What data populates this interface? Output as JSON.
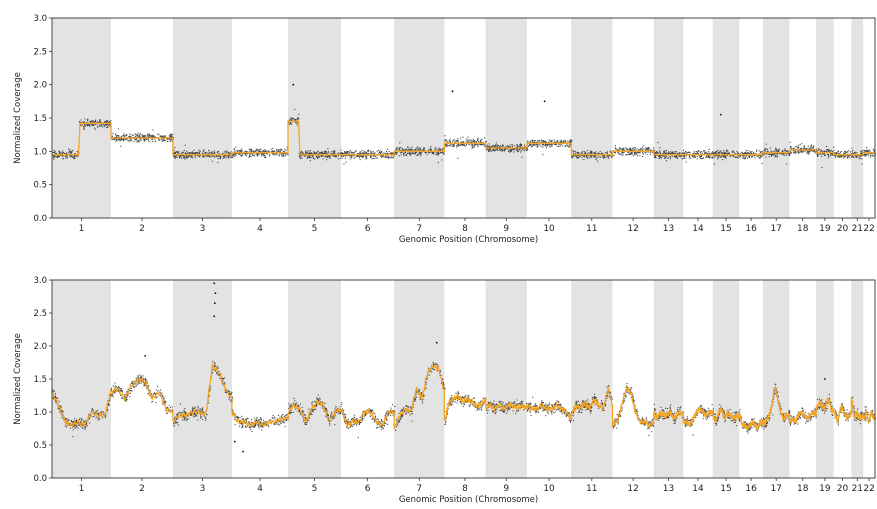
{
  "chart_data": [
    {
      "type": "scatter",
      "xlabel": "Genomic Position (Chromosome)",
      "ylabel": "Normalized Coverage",
      "ylim": [
        0.0,
        3.0
      ],
      "yticks": [
        "0.0",
        "0.5",
        "1.0",
        "1.5",
        "2.0",
        "2.5",
        "3.0"
      ],
      "xticks": [
        "1",
        "2",
        "3",
        "4",
        "5",
        "6",
        "7",
        "8",
        "9",
        "10",
        "11",
        "12",
        "13",
        "14",
        "15",
        "16",
        "17",
        "18",
        "19",
        "20",
        "21",
        "22"
      ],
      "chrom_spans": [
        1.0,
        1.05,
        1.0,
        0.95,
        0.9,
        0.9,
        0.85,
        0.7,
        0.7,
        0.75,
        0.7,
        0.7,
        0.5,
        0.5,
        0.45,
        0.4,
        0.45,
        0.45,
        0.3,
        0.3,
        0.2,
        0.2
      ],
      "grid": false,
      "point_color": "#111111",
      "segment_color": "#f5a623",
      "band_color": "#e3e3e3",
      "segments": [
        {
          "chrom": "1",
          "start": 0.0,
          "end": 0.45,
          "value": 0.95
        },
        {
          "chrom": "1",
          "start": 0.45,
          "end": 1.0,
          "value": 1.42
        },
        {
          "chrom": "2",
          "start": 0.0,
          "end": 1.0,
          "value": 1.2
        },
        {
          "chrom": "3",
          "start": 0.0,
          "end": 1.0,
          "value": 0.95
        },
        {
          "chrom": "4",
          "start": 0.0,
          "end": 1.0,
          "value": 0.98
        },
        {
          "chrom": "5",
          "start": 0.0,
          "end": 0.2,
          "value": 1.45
        },
        {
          "chrom": "5",
          "start": 0.2,
          "end": 1.0,
          "value": 0.95
        },
        {
          "chrom": "6",
          "start": 0.0,
          "end": 1.0,
          "value": 0.95
        },
        {
          "chrom": "7",
          "start": 0.0,
          "end": 1.0,
          "value": 1.0
        },
        {
          "chrom": "8",
          "start": 0.0,
          "end": 1.0,
          "value": 1.12
        },
        {
          "chrom": "9",
          "start": 0.0,
          "end": 1.0,
          "value": 1.05
        },
        {
          "chrom": "10",
          "start": 0.0,
          "end": 1.0,
          "value": 1.12
        },
        {
          "chrom": "11",
          "start": 0.0,
          "end": 1.0,
          "value": 0.95
        },
        {
          "chrom": "12",
          "start": 0.0,
          "end": 1.0,
          "value": 1.0
        },
        {
          "chrom": "13",
          "start": 0.0,
          "end": 1.0,
          "value": 0.95
        },
        {
          "chrom": "14",
          "start": 0.0,
          "end": 1.0,
          "value": 0.95
        },
        {
          "chrom": "15",
          "start": 0.0,
          "end": 1.0,
          "value": 0.95
        },
        {
          "chrom": "16",
          "start": 0.0,
          "end": 1.0,
          "value": 0.95
        },
        {
          "chrom": "17",
          "start": 0.0,
          "end": 1.0,
          "value": 0.98
        },
        {
          "chrom": "18",
          "start": 0.0,
          "end": 1.0,
          "value": 1.02
        },
        {
          "chrom": "19",
          "start": 0.0,
          "end": 1.0,
          "value": 0.98
        },
        {
          "chrom": "20",
          "start": 0.0,
          "end": 1.0,
          "value": 0.95
        },
        {
          "chrom": "21",
          "start": 0.0,
          "end": 1.0,
          "value": 0.95
        },
        {
          "chrom": "22",
          "start": 0.0,
          "end": 1.0,
          "value": 0.98
        }
      ],
      "outliers": [
        {
          "chrom": "5",
          "pos": 0.1,
          "value": 2.0
        },
        {
          "chrom": "8",
          "pos": 0.2,
          "value": 1.9
        },
        {
          "chrom": "10",
          "pos": 0.4,
          "value": 1.75
        },
        {
          "chrom": "15",
          "pos": 0.3,
          "value": 1.55
        }
      ]
    },
    {
      "type": "scatter",
      "xlabel": "Genomic Position (Chromosome)",
      "ylabel": "Normalized Coverage",
      "ylim": [
        0.0,
        3.0
      ],
      "yticks": [
        "0.0",
        "0.5",
        "1.0",
        "1.5",
        "2.0",
        "2.5",
        "3.0"
      ],
      "xticks": [
        "1",
        "2",
        "3",
        "4",
        "5",
        "6",
        "7",
        "8",
        "9",
        "10",
        "11",
        "12",
        "13",
        "14",
        "15",
        "16",
        "17",
        "18",
        "19",
        "20",
        "21",
        "22"
      ],
      "chrom_spans": [
        1.0,
        1.05,
        1.0,
        0.95,
        0.9,
        0.9,
        0.85,
        0.7,
        0.7,
        0.75,
        0.7,
        0.7,
        0.5,
        0.5,
        0.45,
        0.4,
        0.45,
        0.45,
        0.3,
        0.3,
        0.2,
        0.2
      ],
      "grid": false,
      "point_color": "#111111",
      "segment_color": "#f5a623",
      "band_color": "#e3e3e3",
      "profile": [
        {
          "chrom": "1",
          "values": [
            1.3,
            1.1,
            0.85,
            0.8,
            0.85,
            0.8,
            1.0,
            0.95,
            0.95,
            1.3
          ]
        },
        {
          "chrom": "2",
          "values": [
            1.3,
            1.35,
            1.2,
            1.4,
            1.5,
            1.45,
            1.2,
            1.3,
            1.05,
            1.0
          ]
        },
        {
          "chrom": "3",
          "values": [
            0.85,
            0.95,
            0.95,
            1.0,
            1.0,
            0.95,
            1.7,
            1.6,
            1.35,
            1.2
          ]
        },
        {
          "chrom": "4",
          "values": [
            1.0,
            0.85,
            0.85,
            0.8,
            0.85,
            0.8,
            0.85,
            0.85,
            0.9,
            0.9
          ]
        },
        {
          "chrom": "5",
          "values": [
            1.0,
            1.1,
            1.05,
            0.85,
            1.05,
            1.15,
            1.1,
            0.85,
            1.0,
            1.05
          ]
        },
        {
          "chrom": "6",
          "values": [
            1.05,
            0.8,
            0.85,
            0.85,
            1.0,
            1.0,
            0.85,
            0.8,
            1.0,
            1.0
          ]
        },
        {
          "chrom": "7",
          "values": [
            0.75,
            0.95,
            1.05,
            1.0,
            1.35,
            1.2,
            1.6,
            1.7,
            1.65,
            1.3
          ]
        },
        {
          "chrom": "8",
          "values": [
            0.85,
            1.15,
            1.2,
            1.25,
            1.15,
            1.2,
            1.15,
            1.1,
            1.1,
            1.2
          ]
        },
        {
          "chrom": "9",
          "values": [
            1.05,
            1.1,
            1.05,
            1.1,
            1.05,
            1.1,
            1.1,
            1.05,
            1.1,
            1.05
          ]
        },
        {
          "chrom": "10",
          "values": [
            1.1,
            1.05,
            1.05,
            1.1,
            1.05,
            1.05,
            1.1,
            1.05,
            1.0,
            0.9
          ]
        },
        {
          "chrom": "11",
          "values": [
            0.95,
            1.1,
            1.05,
            1.15,
            1.05,
            1.2,
            1.1,
            1.05,
            1.35,
            1.1
          ]
        },
        {
          "chrom": "12",
          "values": [
            0.8,
            0.85,
            1.1,
            1.35,
            1.3,
            1.0,
            0.85,
            0.85,
            0.8,
            0.85
          ]
        },
        {
          "chrom": "13",
          "values": [
            1.0,
            0.9,
            1.0,
            0.95,
            0.95,
            1.0,
            0.9,
            0.95,
            1.0,
            0.95
          ]
        },
        {
          "chrom": "14",
          "values": [
            0.85,
            0.85,
            0.8,
            0.9,
            1.0,
            1.05,
            1.0,
            0.95,
            1.0,
            1.0
          ]
        },
        {
          "chrom": "15",
          "values": [
            0.95,
            0.85,
            1.0,
            1.05,
            0.9,
            1.0,
            0.95,
            0.9,
            0.95,
            0.9
          ]
        },
        {
          "chrom": "16",
          "values": [
            1.0,
            0.8,
            0.8,
            0.75,
            0.8,
            0.85,
            0.8,
            0.75,
            0.85,
            0.85
          ]
        },
        {
          "chrom": "17",
          "values": [
            0.8,
            0.85,
            0.95,
            1.1,
            1.4,
            1.2,
            1.0,
            0.9,
            0.95,
            0.95
          ]
        },
        {
          "chrom": "18",
          "values": [
            0.85,
            0.9,
            0.85,
            0.95,
            1.0,
            0.95,
            0.9,
            0.95,
            1.0,
            0.95
          ]
        },
        {
          "chrom": "19",
          "values": [
            1.05,
            1.1,
            1.15,
            1.1,
            1.05,
            1.1,
            1.2,
            1.15,
            1.0,
            1.05
          ]
        },
        {
          "chrom": "20",
          "values": [
            1.0,
            0.95,
            0.85,
            1.0,
            1.1,
            1.0,
            0.95,
            0.9,
            0.95,
            1.0
          ]
        },
        {
          "chrom": "21",
          "values": [
            1.2,
            1.1,
            0.95,
            0.9,
            1.0,
            0.95,
            0.9,
            0.95,
            0.9,
            0.95
          ]
        },
        {
          "chrom": "22",
          "values": [
            0.95,
            0.9,
            1.0,
            0.95,
            0.85,
            0.9,
            1.0,
            0.95,
            0.9,
            0.95
          ]
        }
      ],
      "outliers": [
        {
          "chrom": "3",
          "pos": 0.7,
          "value": 2.95
        },
        {
          "chrom": "3",
          "pos": 0.72,
          "value": 2.8
        },
        {
          "chrom": "3",
          "pos": 0.71,
          "value": 2.65
        },
        {
          "chrom": "3",
          "pos": 0.7,
          "value": 2.45
        },
        {
          "chrom": "2",
          "pos": 0.55,
          "value": 1.85
        },
        {
          "chrom": "7",
          "pos": 0.85,
          "value": 2.05
        },
        {
          "chrom": "4",
          "pos": 0.05,
          "value": 0.55
        },
        {
          "chrom": "4",
          "pos": 0.2,
          "value": 0.4
        },
        {
          "chrom": "19",
          "pos": 0.5,
          "value": 1.5
        }
      ]
    }
  ]
}
